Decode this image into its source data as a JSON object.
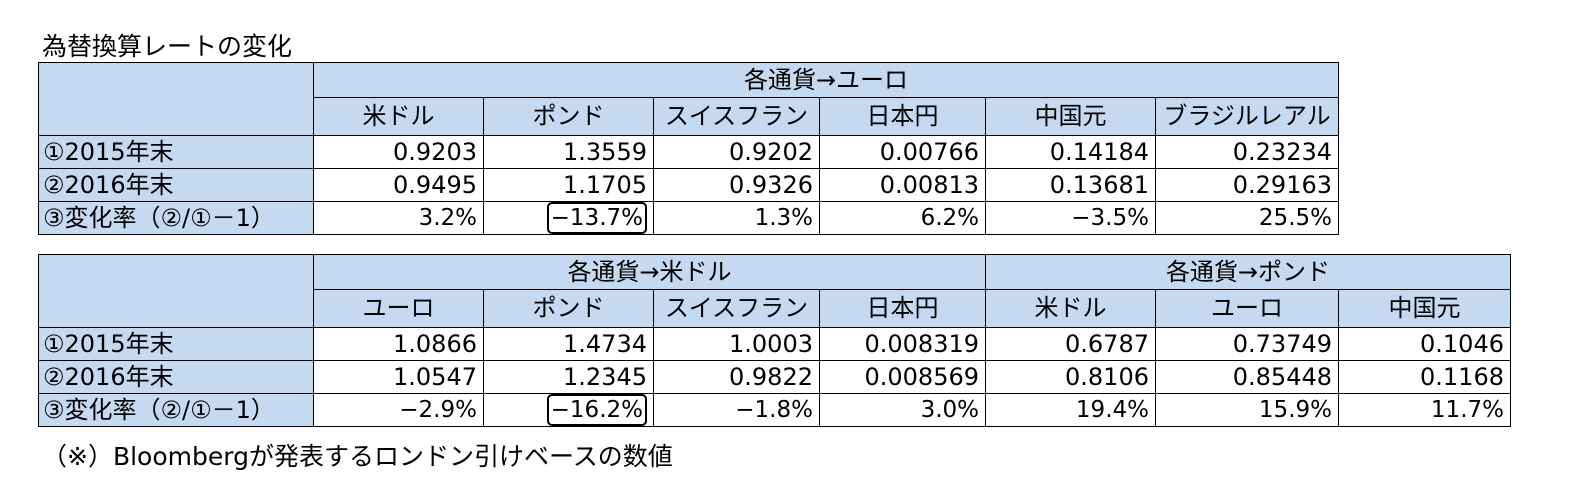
{
  "title": "為替換算レートの変化",
  "footnote": "（※）Bloombergが発表するロンドン引けベースの数値",
  "colors": {
    "header_fill": "#c5d9f1",
    "border": "#000000",
    "highlight_box": "#000000"
  },
  "row_labels": [
    "①2015年末",
    "②2016年末",
    "③変化率（②/①－1）"
  ],
  "table_euro": {
    "group": "各通貨→ユーロ",
    "currencies": [
      "米ドル",
      "ポンド",
      "スイスフラン",
      "日本円",
      "中国元",
      "ブラジルレアル"
    ],
    "rows": [
      [
        "0.9203",
        "1.3559",
        "0.9202",
        "0.00766",
        "0.14184",
        "0.23234"
      ],
      [
        "0.9495",
        "1.1705",
        "0.9326",
        "0.00813",
        "0.13681",
        "0.29163"
      ],
      [
        "3.2%",
        "−13.7%",
        "1.3%",
        "6.2%",
        "−3.5%",
        "25.5%"
      ]
    ],
    "highlighted_cell": "−13.7%"
  },
  "table_usd_gbp": {
    "group_usd": "各通貨→米ドル",
    "group_gbp": "各通貨→ポンド",
    "currencies": [
      "ユーロ",
      "ポンド",
      "スイスフラン",
      "日本円",
      "米ドル",
      "ユーロ",
      "中国元"
    ],
    "rows": [
      [
        "1.0866",
        "1.4734",
        "1.0003",
        "0.008319",
        "0.6787",
        "0.73749",
        "0.1046"
      ],
      [
        "1.0547",
        "1.2345",
        "0.9822",
        "0.008569",
        "0.8106",
        "0.85448",
        "0.1168"
      ],
      [
        "−2.9%",
        "−16.2%",
        "−1.8%",
        "3.0%",
        "19.4%",
        "15.9%",
        "11.7%"
      ]
    ],
    "highlighted_cell": "−16.2%"
  }
}
